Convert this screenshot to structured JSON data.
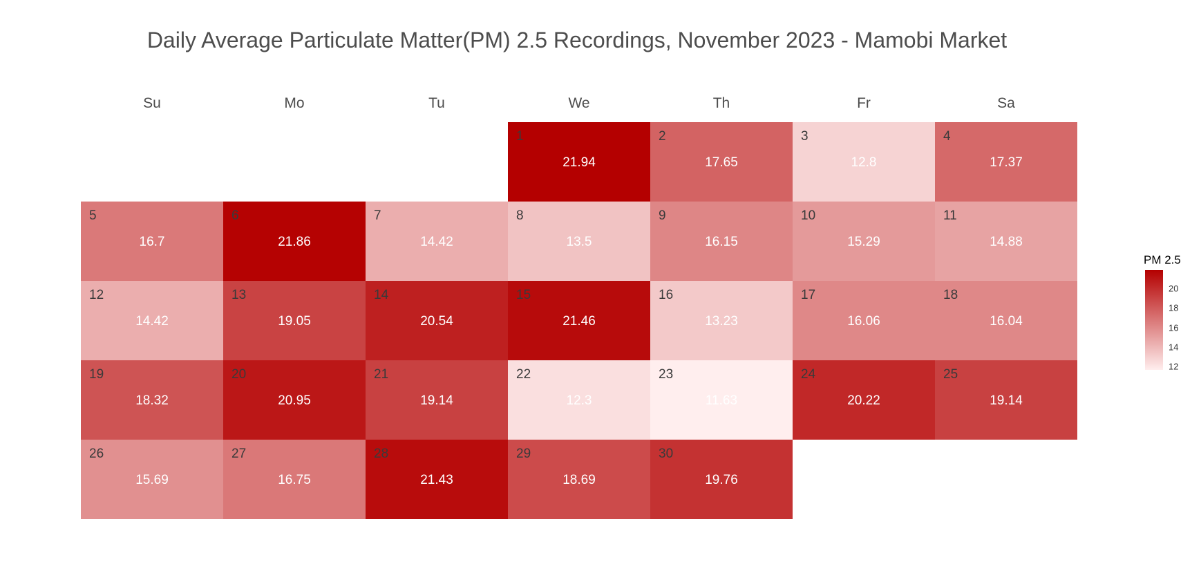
{
  "chart_data": {
    "type": "heatmap",
    "title": "Daily Average Particulate Matter(PM) 2.5 Recordings, November 2023 - Mamobi Market",
    "weekdays": [
      "Su",
      "Mo",
      "Tu",
      "We",
      "Th",
      "Fr",
      "Sa"
    ],
    "first_weekday_index": 3,
    "days": [
      1,
      2,
      3,
      4,
      5,
      6,
      7,
      8,
      9,
      10,
      11,
      12,
      13,
      14,
      15,
      16,
      17,
      18,
      19,
      20,
      21,
      22,
      23,
      24,
      25,
      26,
      27,
      28,
      29,
      30
    ],
    "values": [
      21.94,
      17.65,
      12.8,
      17.37,
      16.7,
      21.86,
      14.42,
      13.5,
      16.15,
      15.29,
      14.88,
      14.42,
      19.05,
      20.54,
      21.46,
      13.23,
      16.06,
      16.04,
      18.32,
      20.95,
      19.14,
      12.3,
      11.63,
      20.22,
      19.14,
      15.69,
      16.75,
      21.43,
      18.69,
      19.76
    ],
    "value_labels": [
      "21.94",
      "17.65",
      "12.8",
      "17.37",
      "16.7",
      "21.86",
      "14.42",
      "13.5",
      "16.15",
      "15.29",
      "14.88",
      "14.42",
      "19.05",
      "20.54",
      "21.46",
      "13.23",
      "16.06",
      "16.04",
      "18.32",
      "20.95",
      "19.14",
      "12.3",
      "11.63",
      "20.22",
      "19.14",
      "15.69",
      "16.75",
      "21.43",
      "18.69",
      "19.76"
    ],
    "color_scale": {
      "min": 11.63,
      "max": 21.94,
      "low_color": "#ffeeee",
      "high_color": "#b40000"
    },
    "legend": {
      "title": "PM 2.5",
      "ticks": [
        12,
        14,
        16,
        18,
        20
      ],
      "tick_labels": [
        "12",
        "14",
        "16",
        "18",
        "20"
      ],
      "placement": "right"
    }
  }
}
